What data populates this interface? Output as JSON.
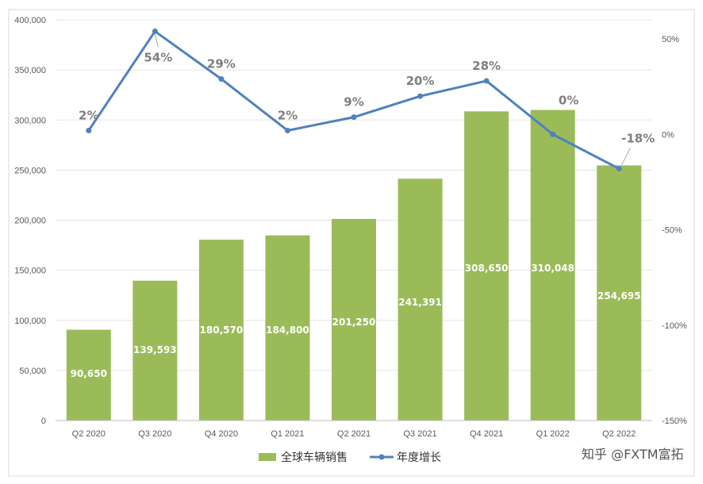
{
  "chart_data": {
    "type": "bar",
    "categories": [
      "Q2 2020",
      "Q3 2020",
      "Q4 2020",
      "Q1 2021",
      "Q2 2021",
      "Q3 2021",
      "Q4 2021",
      "Q1 2022",
      "Q2 2022"
    ],
    "series": [
      {
        "name": "全球车辆销售",
        "type": "bar",
        "axis": "left",
        "color": "#9bbb59",
        "values": [
          90650,
          139593,
          180570,
          184800,
          201250,
          241391,
          308650,
          310048,
          254695
        ],
        "labels": [
          "90,650",
          "139,593",
          "180,570",
          "184,800",
          "201,250",
          "241,391",
          "308,650",
          "310,048",
          "254,695"
        ]
      },
      {
        "name": "年度增长",
        "type": "line",
        "axis": "right",
        "color": "#4f81bd",
        "values": [
          2,
          54,
          29,
          2,
          9,
          20,
          28,
          0,
          -18
        ],
        "labels": [
          "2%",
          "54%",
          "29%",
          "2%",
          "9%",
          "20%",
          "28%",
          "0%",
          "-18%"
        ]
      }
    ],
    "y_left": {
      "range": [
        0,
        400000
      ],
      "ticks": [
        0,
        50000,
        100000,
        150000,
        200000,
        250000,
        300000,
        350000,
        400000
      ],
      "tick_labels": [
        "0",
        "50,000",
        "100,000",
        "150,000",
        "200,000",
        "250,000",
        "300,000",
        "350,000",
        "400,000"
      ]
    },
    "y_right": {
      "range": [
        -150,
        60
      ],
      "ticks": [
        50,
        0,
        -50,
        -100,
        -150
      ],
      "tick_labels": [
        "50%",
        "0%",
        "-50%",
        "-100%",
        "-150%"
      ]
    },
    "grid": true,
    "legend": "bottom-center"
  },
  "watermark": "知乎 @FXTM富拓"
}
